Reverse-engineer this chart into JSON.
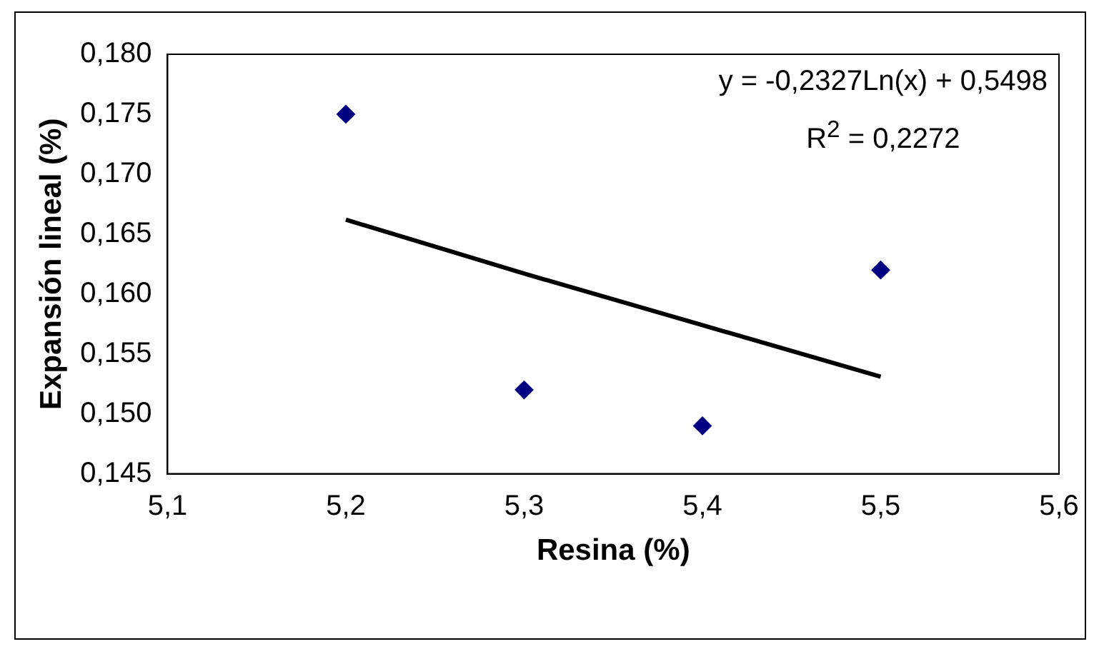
{
  "chart_data": {
    "type": "scatter",
    "xlabel": "Resina (%)",
    "ylabel": "Expansión lineal (%)",
    "series": [
      {
        "type": "scatter",
        "color": "#000080",
        "marker": "diamond",
        "x": [
          5.2,
          5.3,
          5.4,
          5.5
        ],
        "values": [
          0.175,
          0.152,
          0.149,
          0.162
        ]
      },
      {
        "type": "line",
        "color": "#000000",
        "marker": "none",
        "line_style": "solid",
        "x": [
          5.2,
          5.3,
          5.4,
          5.5
        ],
        "values": [
          0.1662,
          0.1617,
          0.1574,
          0.1531
        ]
      }
    ],
    "xlim": [
      5.1,
      5.6
    ],
    "xticks": [
      {
        "value": 5.1,
        "label": "5,1"
      },
      {
        "value": 5.2,
        "label": "5,2"
      },
      {
        "value": 5.3,
        "label": "5,3"
      },
      {
        "value": 5.4,
        "label": "5,4"
      },
      {
        "value": 5.5,
        "label": "5,5"
      },
      {
        "value": 5.6,
        "label": "5,6"
      }
    ],
    "ylim": [
      0.145,
      0.18
    ],
    "yticks": [
      {
        "value": 0.145,
        "label": "0,145"
      },
      {
        "value": 0.15,
        "label": "0,150"
      },
      {
        "value": 0.155,
        "label": "0,155"
      },
      {
        "value": 0.16,
        "label": "0,160"
      },
      {
        "value": 0.165,
        "label": "0,165"
      },
      {
        "value": 0.17,
        "label": "0,170"
      },
      {
        "value": 0.175,
        "label": "0,175"
      },
      {
        "value": 0.18,
        "label": "0,180"
      }
    ],
    "annotations": [
      "y = -0,2327Ln(x) + 0,5498",
      "R$^{2}$ = 0,2272"
    ],
    "grid": false,
    "legend": false
  }
}
